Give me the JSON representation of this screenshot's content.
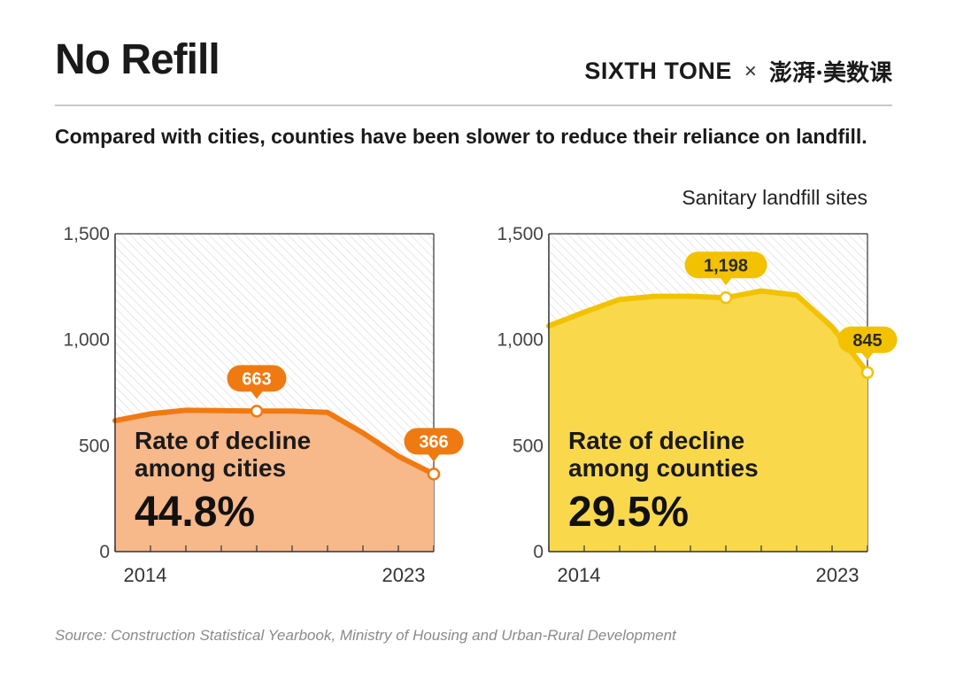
{
  "title": "No Refill",
  "brand": {
    "sixth_tone": "SIXTH TONE",
    "times": "×",
    "partner": "澎湃·美数课"
  },
  "subtitle": "Compared with cities, counties have been slower to reduce their reliance on landfill.",
  "unit_label": "Sanitary landfill sites",
  "source": "Source: Construction Statistical Yearbook, Ministry of Housing and Urban-Rural Development",
  "colors": {
    "cities_line": "#f07a12",
    "cities_fill": "#f7b88a",
    "counties_line": "#f2c200",
    "counties_fill": "#fad84c",
    "hatch": "#d8d8d8",
    "axis": "#444444"
  },
  "chart_data": [
    {
      "type": "area",
      "name": "cities",
      "x": [
        2014,
        2015,
        2016,
        2017,
        2018,
        2019,
        2020,
        2021,
        2022,
        2023
      ],
      "values": [
        618,
        650,
        667,
        665,
        663,
        663,
        657,
        560,
        450,
        366
      ],
      "highlight_labels": [
        {
          "x": 2018,
          "label": "663"
        },
        {
          "x": 2023,
          "label": "366"
        }
      ],
      "x_tick_labels": [
        "2014",
        "2023"
      ],
      "y_ticks": [
        0,
        500,
        1000,
        1500
      ],
      "y_tick_labels": [
        "0",
        "500",
        "1,000",
        "1,500"
      ],
      "ylim": [
        0,
        1500
      ],
      "annotation_line1": "Rate of decline",
      "annotation_line2": "among cities",
      "annotation_value": "44.8%",
      "grid": false
    },
    {
      "type": "area",
      "name": "counties",
      "x": [
        2014,
        2015,
        2016,
        2017,
        2018,
        2019,
        2020,
        2021,
        2022,
        2023
      ],
      "values": [
        1065,
        1130,
        1190,
        1205,
        1205,
        1198,
        1230,
        1210,
        1060,
        845
      ],
      "highlight_labels": [
        {
          "x": 2019,
          "label": "1,198"
        },
        {
          "x": 2023,
          "label": "845"
        }
      ],
      "x_tick_labels": [
        "2014",
        "2023"
      ],
      "y_ticks": [
        0,
        500,
        1000,
        1500
      ],
      "y_tick_labels": [
        "0",
        "500",
        "1,000",
        "1,500"
      ],
      "ylim": [
        0,
        1500
      ],
      "annotation_line1": "Rate of decline",
      "annotation_line2": "among counties",
      "annotation_value": "29.5%",
      "grid": false
    }
  ]
}
